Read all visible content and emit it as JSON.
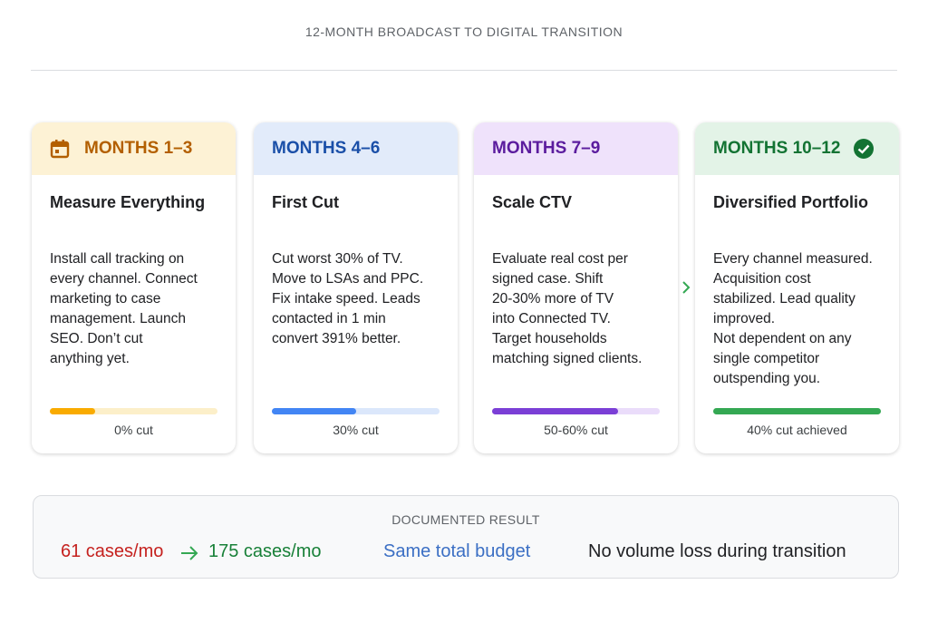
{
  "header": {
    "title": "12-MONTH BROADCAST TO DIGITAL TRANSITION"
  },
  "phases": [
    {
      "label": "MONTHS 1–3",
      "title": "Measure Everything",
      "lines": [
        "Install call tracking on",
        "every channel. Connect",
        "marketing to case",
        "management. Launch",
        "SEO. Don’t cut",
        "anything yet."
      ],
      "progress": 27,
      "cut": "0% cut"
    },
    {
      "label": "MONTHS 4–6",
      "title": "First Cut",
      "lines": [
        "Cut worst 30% of TV.",
        "Move to LSAs and PPC.",
        "Fix intake speed. Leads",
        "contacted in 1 min",
        "convert 391% better."
      ],
      "progress": 50,
      "cut": "30% cut"
    },
    {
      "label": "MONTHS 7–9",
      "title": "Scale CTV",
      "lines": [
        "Evaluate real cost per",
        "signed case. Shift",
        "20-30% more of TV",
        "into Connected TV.",
        "Target households",
        "matching signed clients."
      ],
      "progress": 75,
      "cut": "50-60% cut"
    },
    {
      "label": "MONTHS 10–12",
      "title": "Diversified Portfolio",
      "lines": [
        "Every channel measured.",
        "Acquisition cost",
        "stabilized. Lead quality",
        "improved.",
        "Not dependent on any",
        "single competitor",
        "outspending you."
      ],
      "progress": 100,
      "cut": "40% cut achieved"
    }
  ],
  "result": {
    "heading": "DOCUMENTED RESULT",
    "before": "61 cases/mo",
    "after": "175 cases/mo",
    "budget": "Same total budget",
    "note": "No volume loss during transition"
  }
}
